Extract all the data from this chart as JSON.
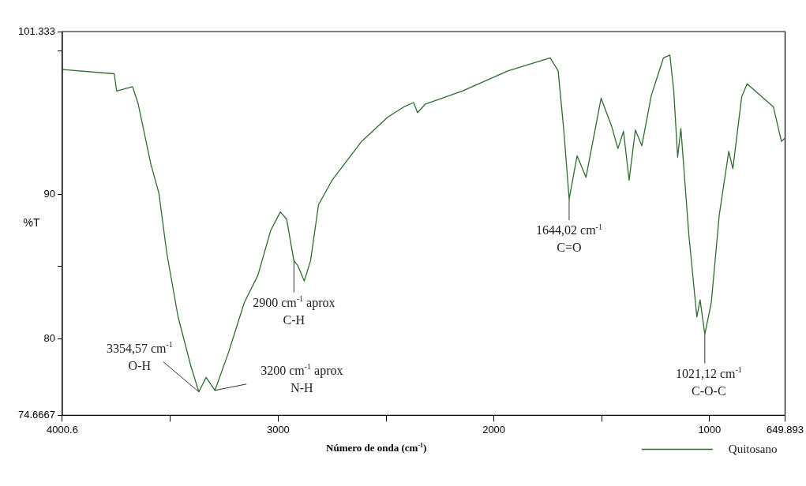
{
  "chart_data": {
    "type": "line",
    "xlabel": "Número de onda (cm$^{-1}$)",
    "ylabel": "%T",
    "x": [
      4000,
      3760,
      3749,
      3675,
      3649,
      3590,
      3553,
      3516,
      3464,
      3405,
      3368,
      3334,
      3293,
      3231,
      3157,
      3094,
      3035,
      2990,
      2961,
      2927,
      2910,
      2879,
      2850,
      2813,
      2750,
      2613,
      2491,
      2417,
      2372,
      2354,
      2317,
      2146,
      1935,
      1739,
      1702,
      1676,
      1651,
      1614,
      1573,
      1503,
      1455,
      1425,
      1399,
      1373,
      1344,
      1314,
      1270,
      1214,
      1184,
      1166,
      1148,
      1133,
      1096,
      1059,
      1044,
      1022,
      992,
      955,
      911,
      892,
      851,
      826,
      704,
      667,
      652
    ],
    "series": [
      {
        "name": "Quitosano",
        "color": "#2e6b2e",
        "values": [
          98.7,
          98.4,
          97.2,
          97.5,
          96.3,
          92.1,
          90.1,
          85.9,
          81.5,
          78.1,
          76.3,
          77.3,
          76.4,
          79.0,
          82.5,
          84.4,
          87.5,
          88.8,
          88.3,
          85.4,
          85.1,
          84.0,
          85.4,
          89.3,
          91.0,
          93.7,
          95.4,
          96.1,
          96.4,
          95.7,
          96.3,
          97.2,
          98.6,
          99.5,
          98.6,
          94.5,
          89.7,
          92.7,
          91.2,
          96.7,
          94.8,
          93.2,
          94.4,
          91.0,
          94.5,
          93.4,
          96.9,
          99.5,
          99.7,
          97.2,
          92.6,
          94.6,
          87.2,
          81.5,
          82.7,
          80.3,
          82.5,
          88.6,
          93.0,
          91.8,
          96.8,
          97.7,
          96.1,
          93.7,
          93.9
        ]
      }
    ],
    "xlim": [
      4000.6,
      649.893
    ],
    "xticks": [
      4000.6,
      {
        "value": 3500,
        "label": null
      },
      3000,
      {
        "value": 2500,
        "label": null
      },
      2000,
      {
        "value": 1500,
        "label": null
      },
      1000,
      649.893
    ],
    "ylim": [
      74.6667,
      101.333
    ],
    "yticks": [
      74.6667,
      80,
      {
        "value": 85,
        "label": null
      },
      90,
      {
        "value": 100,
        "label": null
      },
      101.333
    ],
    "annotations": [
      {
        "text": "3354,57 cm$^{-1}$",
        "x": 3368,
        "y": 76.3
      },
      "O-H",
      {
        "text": "3200 cm$^{-1}$ aprox",
        "x": 3293,
        "y": 76.4
      },
      "N-H",
      {
        "text": "2900 cm$^{-1}$ aprox",
        "x": 2927,
        "y": 85.4
      },
      "C-H",
      {
        "text": "1644,02 cm$^{-1}$",
        "x": 1651,
        "y": 89.7
      },
      "C=O",
      {
        "text": "1021,12 cm$^{-1}$",
        "x": 1022,
        "y": 80.3
      },
      "C-O-C"
    ],
    "grid": false,
    "legend": "bottom right",
    "marker": "none",
    "line_style": "solid"
  }
}
